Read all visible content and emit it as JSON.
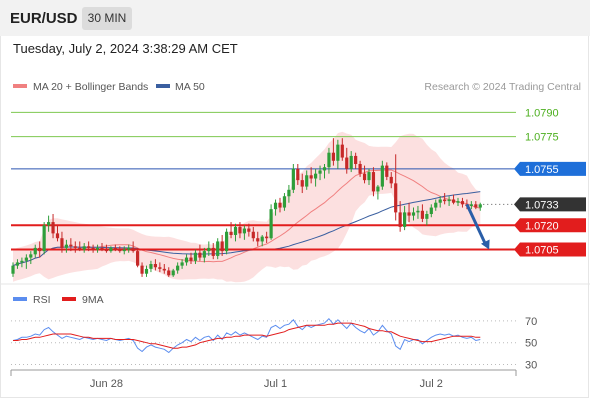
{
  "header": {
    "symbol": "EUR/USD",
    "timeframe": "30 MIN",
    "datetime": "Tuesday, July 2, 2024 3:38:29 AM CET"
  },
  "colors": {
    "bullish": "#2e9e3a",
    "bearish": "#c62828",
    "bollinger_fill": "#fbd5d5",
    "ma20": "#f08080",
    "ma50": "#3a5fa0",
    "resistance_green": "#7ec850",
    "label_green": "#4caf1e",
    "pivot_blue": "#2a55b0",
    "pivot_badge": "#1e6fd9",
    "support_red": "#e21d1d",
    "current_badge": "#333333",
    "arrow": "#2a5ea8",
    "rsi": "#5b8def",
    "rsi_ma": "#e21d1d"
  },
  "legend": {
    "ma20_label": "MA 20 + Bollinger Bands",
    "ma50_label": "MA 50",
    "rsi_label": "RSI",
    "rsi_ma_label": "9MA"
  },
  "copyright": "Research © 2024 Trading Central",
  "chart_data": [
    {
      "type": "candlestick",
      "title": "EUR/USD 30 MIN",
      "ylim": [
        1.0683,
        1.0802
      ],
      "x_ticks": [
        {
          "label": "Jun 28",
          "index": 21
        },
        {
          "label": "Jul 1",
          "index": 59
        },
        {
          "label": "Jul 2",
          "index": 94
        }
      ],
      "levels": [
        {
          "value": 1.079,
          "label": "1.0790",
          "kind": "resistance"
        },
        {
          "value": 1.0775,
          "label": "1.0775",
          "kind": "resistance"
        },
        {
          "value": 1.0755,
          "label": "1.0755",
          "kind": "pivot"
        },
        {
          "value": 1.0733,
          "label": "1.0733",
          "kind": "current"
        },
        {
          "value": 1.072,
          "label": "1.0720",
          "kind": "support"
        },
        {
          "value": 1.0705,
          "label": "1.0705",
          "kind": "support"
        }
      ],
      "forecast_arrow": {
        "from_index": 102,
        "from_value": 1.0733,
        "to_index": 107,
        "to_value": 1.0705
      },
      "ohlc": [
        [
          1.069,
          1.0697,
          1.0688,
          1.0695
        ],
        [
          1.0695,
          1.0699,
          1.0693,
          1.0697
        ],
        [
          1.0697,
          1.07,
          1.0694,
          1.0698
        ],
        [
          1.0698,
          1.0702,
          1.0693,
          1.07
        ],
        [
          1.07,
          1.0704,
          1.0696,
          1.0702
        ],
        [
          1.0702,
          1.0708,
          1.07,
          1.0706
        ],
        [
          1.0706,
          1.071,
          1.07,
          1.0704
        ],
        [
          1.0704,
          1.0722,
          1.0702,
          1.072
        ],
        [
          1.072,
          1.0726,
          1.0716,
          1.0722
        ],
        [
          1.0722,
          1.0727,
          1.0712,
          1.0715
        ],
        [
          1.0715,
          1.072,
          1.071,
          1.0712
        ],
        [
          1.0712,
          1.0716,
          1.0703,
          1.0706
        ],
        [
          1.0706,
          1.0711,
          1.0703,
          1.0708
        ],
        [
          1.0708,
          1.0712,
          1.0704,
          1.0707
        ],
        [
          1.0707,
          1.071,
          1.0703,
          1.0706
        ],
        [
          1.0706,
          1.071,
          1.0704,
          1.0705
        ],
        [
          1.0705,
          1.0709,
          1.0703,
          1.0707
        ],
        [
          1.0707,
          1.071,
          1.0704,
          1.0706
        ],
        [
          1.0706,
          1.0708,
          1.0703,
          1.0705
        ],
        [
          1.0705,
          1.0708,
          1.0703,
          1.0706
        ],
        [
          1.0706,
          1.0709,
          1.0704,
          1.0705
        ],
        [
          1.0705,
          1.0708,
          1.0703,
          1.0704
        ],
        [
          1.0704,
          1.0707,
          1.0703,
          1.0706
        ],
        [
          1.0706,
          1.0708,
          1.0704,
          1.0705
        ],
        [
          1.0705,
          1.0707,
          1.0703,
          1.0704
        ],
        [
          1.0704,
          1.0707,
          1.0702,
          1.0705
        ],
        [
          1.0705,
          1.0708,
          1.0703,
          1.0706
        ],
        [
          1.0706,
          1.071,
          1.0703,
          1.0704
        ],
        [
          1.0704,
          1.0706,
          1.0694,
          1.0695
        ],
        [
          1.0695,
          1.0697,
          1.0688,
          1.069
        ],
        [
          1.069,
          1.0695,
          1.0688,
          1.0693
        ],
        [
          1.0693,
          1.0698,
          1.0691,
          1.0696
        ],
        [
          1.0696,
          1.0699,
          1.0692,
          1.0694
        ],
        [
          1.0694,
          1.0697,
          1.0691,
          1.0693
        ],
        [
          1.0693,
          1.0696,
          1.069,
          1.0692
        ],
        [
          1.0692,
          1.0694,
          1.0688,
          1.0689
        ],
        [
          1.0689,
          1.0693,
          1.0688,
          1.0692
        ],
        [
          1.0692,
          1.0697,
          1.069,
          1.0695
        ],
        [
          1.0695,
          1.0699,
          1.0693,
          1.0697
        ],
        [
          1.0697,
          1.0702,
          1.0695,
          1.07
        ],
        [
          1.07,
          1.0703,
          1.0696,
          1.0698
        ],
        [
          1.0698,
          1.0705,
          1.0696,
          1.0703
        ],
        [
          1.0703,
          1.0708,
          1.0698,
          1.07
        ],
        [
          1.07,
          1.0706,
          1.0697,
          1.0704
        ],
        [
          1.0704,
          1.071,
          1.0701,
          1.0706
        ],
        [
          1.0706,
          1.0709,
          1.0699,
          1.0701
        ],
        [
          1.0701,
          1.0712,
          1.0699,
          1.071
        ],
        [
          1.071,
          1.0714,
          1.0701,
          1.0704
        ],
        [
          1.0704,
          1.0718,
          1.0702,
          1.0716
        ],
        [
          1.0716,
          1.0722,
          1.0712,
          1.0714
        ],
        [
          1.0714,
          1.0721,
          1.071,
          1.0719
        ],
        [
          1.0719,
          1.0722,
          1.0712,
          1.0715
        ],
        [
          1.0715,
          1.072,
          1.0711,
          1.0718
        ],
        [
          1.0718,
          1.0721,
          1.0713,
          1.0716
        ],
        [
          1.0716,
          1.0719,
          1.071,
          1.0712
        ],
        [
          1.0712,
          1.0716,
          1.0707,
          1.071
        ],
        [
          1.071,
          1.0714,
          1.0707,
          1.0713
        ],
        [
          1.0713,
          1.0716,
          1.0709,
          1.0712
        ],
        [
          1.0712,
          1.0733,
          1.0711,
          1.073
        ],
        [
          1.073,
          1.0736,
          1.0726,
          1.0734
        ],
        [
          1.0734,
          1.0737,
          1.0728,
          1.0731
        ],
        [
          1.0731,
          1.074,
          1.0729,
          1.0738
        ],
        [
          1.0738,
          1.0745,
          1.0734,
          1.0742
        ],
        [
          1.0742,
          1.0758,
          1.074,
          1.0755
        ],
        [
          1.0755,
          1.0758,
          1.0745,
          1.0748
        ],
        [
          1.0748,
          1.0752,
          1.074,
          1.0744
        ],
        [
          1.0744,
          1.0754,
          1.0742,
          1.0751
        ],
        [
          1.0751,
          1.0756,
          1.0746,
          1.0749
        ],
        [
          1.0749,
          1.0755,
          1.0744,
          1.0752
        ],
        [
          1.0752,
          1.0757,
          1.0748,
          1.0754
        ],
        [
          1.0754,
          1.0758,
          1.0749,
          1.0756
        ],
        [
          1.0756,
          1.0768,
          1.0752,
          1.0765
        ],
        [
          1.0765,
          1.0774,
          1.0757,
          1.076
        ],
        [
          1.076,
          1.0773,
          1.0755,
          1.077
        ],
        [
          1.077,
          1.0774,
          1.076,
          1.0762
        ],
        [
          1.0762,
          1.0768,
          1.0752,
          1.0755
        ],
        [
          1.0755,
          1.0766,
          1.0753,
          1.0763
        ],
        [
          1.0763,
          1.0765,
          1.0755,
          1.0758
        ],
        [
          1.0758,
          1.076,
          1.075,
          1.0752
        ],
        [
          1.0752,
          1.0757,
          1.0746,
          1.0748
        ],
        [
          1.0748,
          1.0755,
          1.0745,
          1.0753
        ],
        [
          1.0753,
          1.0756,
          1.0738,
          1.0741
        ],
        [
          1.0741,
          1.0745,
          1.0736,
          1.0744
        ],
        [
          1.0744,
          1.076,
          1.0742,
          1.0757
        ],
        [
          1.0757,
          1.0759,
          1.0748,
          1.075
        ],
        [
          1.075,
          1.0753,
          1.0743,
          1.0746
        ],
        [
          1.0746,
          1.0764,
          1.0723,
          1.0728
        ],
        [
          1.0728,
          1.0735,
          1.0716,
          1.0719
        ],
        [
          1.0719,
          1.0732,
          1.0717,
          1.0728
        ],
        [
          1.0728,
          1.0734,
          1.0722,
          1.0726
        ],
        [
          1.0726,
          1.0731,
          1.0723,
          1.0728
        ],
        [
          1.0728,
          1.0732,
          1.0724,
          1.0729
        ],
        [
          1.0729,
          1.0733,
          1.0722,
          1.0724
        ],
        [
          1.0724,
          1.0729,
          1.072,
          1.0727
        ],
        [
          1.0727,
          1.0733,
          1.0725,
          1.0731
        ],
        [
          1.0731,
          1.0736,
          1.0729,
          1.0734
        ],
        [
          1.0734,
          1.0738,
          1.0731,
          1.0736
        ],
        [
          1.0736,
          1.074,
          1.0733,
          1.0735
        ],
        [
          1.0735,
          1.0738,
          1.0732,
          1.0736
        ],
        [
          1.0736,
          1.0739,
          1.0733,
          1.0734
        ],
        [
          1.0734,
          1.0737,
          1.0732,
          1.0735
        ],
        [
          1.0735,
          1.0737,
          1.0731,
          1.0733
        ],
        [
          1.0733,
          1.0736,
          1.073,
          1.0732
        ],
        [
          1.0732,
          1.0735,
          1.073,
          1.0733
        ],
        [
          1.0733,
          1.0735,
          1.073,
          1.0731
        ],
        [
          1.0731,
          1.0734,
          1.0729,
          1.0733
        ]
      ]
    },
    {
      "type": "line",
      "title": "RSI",
      "ylim": [
        25,
        80
      ],
      "y_ticks": [
        70,
        50,
        30
      ],
      "series": [
        {
          "name": "RSI",
          "values": [
            52,
            53,
            55,
            55,
            56,
            58,
            57,
            62,
            64,
            60,
            57,
            54,
            56,
            55,
            54,
            53,
            55,
            54,
            53,
            54,
            53,
            52,
            54,
            53,
            52,
            53,
            54,
            52,
            45,
            42,
            46,
            48,
            46,
            45,
            44,
            41,
            45,
            48,
            50,
            53,
            51,
            55,
            52,
            55,
            56,
            52,
            57,
            53,
            59,
            57,
            60,
            57,
            59,
            57,
            55,
            53,
            56,
            55,
            64,
            66,
            63,
            66,
            67,
            71,
            65,
            62,
            66,
            64,
            66,
            67,
            68,
            72,
            67,
            71,
            67,
            63,
            68,
            64,
            61,
            59,
            63,
            57,
            60,
            66,
            61,
            58,
            47,
            44,
            53,
            51,
            53,
            53,
            49,
            52,
            55,
            57,
            58,
            57,
            58,
            56,
            57,
            55,
            54,
            55,
            52,
            53
          ]
        },
        {
          "name": "9MA",
          "values": [
            52,
            52,
            53,
            53,
            54,
            55,
            55,
            56,
            57,
            58,
            58,
            58,
            58,
            58,
            57,
            56,
            55,
            55,
            54,
            54,
            54,
            54,
            54,
            53,
            53,
            53,
            53,
            53,
            52,
            51,
            50,
            49,
            49,
            48,
            47,
            46,
            45,
            45,
            46,
            46,
            47,
            48,
            50,
            51,
            52,
            53,
            54,
            54,
            55,
            55,
            56,
            56,
            57,
            57,
            57,
            57,
            57,
            56,
            57,
            58,
            59,
            60,
            62,
            63,
            64,
            65,
            66,
            66,
            66,
            66,
            66,
            67,
            67,
            68,
            68,
            68,
            68,
            67,
            66,
            65,
            63,
            62,
            61,
            61,
            60,
            60,
            58,
            56,
            55,
            54,
            53,
            52,
            51,
            51,
            51,
            52,
            53,
            54,
            55,
            56,
            56,
            56,
            56,
            56,
            55,
            55
          ]
        }
      ]
    }
  ]
}
